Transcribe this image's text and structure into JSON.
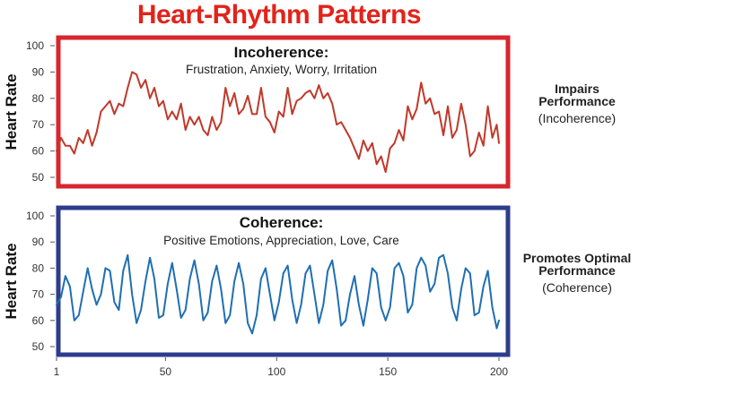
{
  "title": "Heart-Rhythm Patterns",
  "colors": {
    "title": "#e2231a",
    "panel1_border": "#d7262d",
    "panel1_line": "#c0392b",
    "panel2_border": "#2e3c8c",
    "panel2_line": "#1f6fb2"
  },
  "chart_data": [
    {
      "type": "line",
      "title": "Incoherence:",
      "subtitle": "Frustration, Anxiety, Worry, Irritation",
      "ylabel": "Heart Rate",
      "xlabel": "",
      "ylim": [
        50,
        100
      ],
      "xlim": [
        1,
        200
      ],
      "yticks": [
        "50",
        "60",
        "70",
        "80",
        "90",
        "100"
      ],
      "series": [
        {
          "x": [
            1,
            3,
            5,
            7,
            9,
            11,
            13,
            15,
            17,
            19,
            21,
            23,
            25,
            27,
            29,
            31,
            33,
            35,
            37,
            39,
            41,
            43,
            45,
            47,
            49,
            51,
            53,
            55,
            57,
            59,
            61,
            63,
            65,
            67,
            69,
            71,
            73,
            75,
            77,
            79,
            81,
            83,
            85,
            87,
            89,
            91,
            93,
            95,
            97,
            99,
            101,
            103,
            105,
            107,
            109,
            111,
            113,
            115,
            117,
            119,
            121,
            123,
            125,
            127,
            129,
            131,
            133,
            135,
            137,
            139,
            141,
            143,
            145,
            147,
            149,
            151,
            153,
            155,
            157,
            159,
            161,
            163,
            165,
            167,
            169,
            171,
            173,
            175,
            177,
            179,
            181,
            183,
            185,
            187,
            189,
            191,
            193,
            195,
            197,
            199,
            200
          ],
          "y": [
            60,
            65,
            62,
            62,
            59,
            65,
            63,
            68,
            62,
            67,
            75,
            77,
            79,
            74,
            78,
            77,
            84,
            90,
            89,
            84,
            87,
            80,
            84,
            77,
            79,
            72,
            75,
            72,
            78,
            68,
            73,
            70,
            73,
            68,
            66,
            73,
            68,
            71,
            84,
            77,
            82,
            74,
            76,
            81,
            74,
            74,
            84,
            73,
            71,
            67,
            75,
            73,
            84,
            74,
            79,
            80,
            82,
            83,
            80,
            85,
            80,
            82,
            78,
            70,
            71,
            68,
            65,
            61,
            57,
            64,
            60,
            63,
            55,
            58,
            52,
            61,
            63,
            68,
            64,
            77,
            72,
            76,
            86,
            78,
            80,
            74,
            75,
            66,
            77,
            65,
            68,
            78,
            70,
            58,
            60,
            67,
            62,
            77,
            65,
            70,
            63
          ]
        }
      ]
    },
    {
      "type": "line",
      "title": "Coherence:",
      "subtitle": "Positive Emotions, Appreciation, Love, Care",
      "ylabel": "Heart Rate",
      "xlabel": "",
      "ylim": [
        50,
        100
      ],
      "xlim": [
        1,
        200
      ],
      "yticks": [
        "50",
        "60",
        "70",
        "80",
        "90",
        "100"
      ],
      "xticks": [
        "1",
        "50",
        "100",
        "150",
        "200"
      ],
      "series": [
        {
          "x": [
            1,
            3,
            5,
            7,
            9,
            11,
            13,
            15,
            17,
            19,
            21,
            23,
            25,
            27,
            29,
            31,
            33,
            35,
            37,
            39,
            41,
            43,
            45,
            47,
            49,
            51,
            53,
            55,
            57,
            59,
            61,
            63,
            65,
            67,
            69,
            71,
            73,
            75,
            77,
            79,
            81,
            83,
            85,
            87,
            89,
            91,
            93,
            95,
            97,
            99,
            101,
            103,
            105,
            107,
            109,
            111,
            113,
            115,
            117,
            119,
            121,
            123,
            125,
            127,
            129,
            131,
            133,
            135,
            137,
            139,
            141,
            143,
            145,
            147,
            149,
            151,
            153,
            155,
            157,
            159,
            161,
            163,
            165,
            167,
            169,
            171,
            173,
            175,
            177,
            179,
            181,
            183,
            185,
            187,
            189,
            191,
            193,
            195,
            197,
            199,
            200
          ],
          "y": [
            66,
            69,
            77,
            73,
            60,
            62,
            71,
            80,
            72,
            66,
            70,
            80,
            79,
            67,
            64,
            79,
            85,
            70,
            59,
            64,
            75,
            84,
            76,
            61,
            62,
            74,
            82,
            72,
            61,
            64,
            76,
            83,
            74,
            60,
            63,
            75,
            81,
            72,
            59,
            62,
            75,
            82,
            74,
            59,
            55,
            62,
            76,
            80,
            70,
            60,
            67,
            78,
            81,
            68,
            59,
            66,
            78,
            81,
            70,
            59,
            66,
            79,
            83,
            72,
            58,
            60,
            70,
            77,
            66,
            58,
            68,
            80,
            78,
            65,
            60,
            65,
            80,
            82,
            77,
            63,
            66,
            80,
            84,
            81,
            71,
            74,
            84,
            85,
            78,
            65,
            60,
            72,
            80,
            78,
            62,
            63,
            73,
            79,
            65,
            57,
            60
          ]
        }
      ]
    }
  ],
  "side_labels": [
    {
      "line1": "Impairs",
      "line2": "Performance",
      "line3": "(Incoherence)"
    },
    {
      "line1": "Promotes Optimal",
      "line2": "Performance",
      "line3": "(Coherence)"
    }
  ]
}
